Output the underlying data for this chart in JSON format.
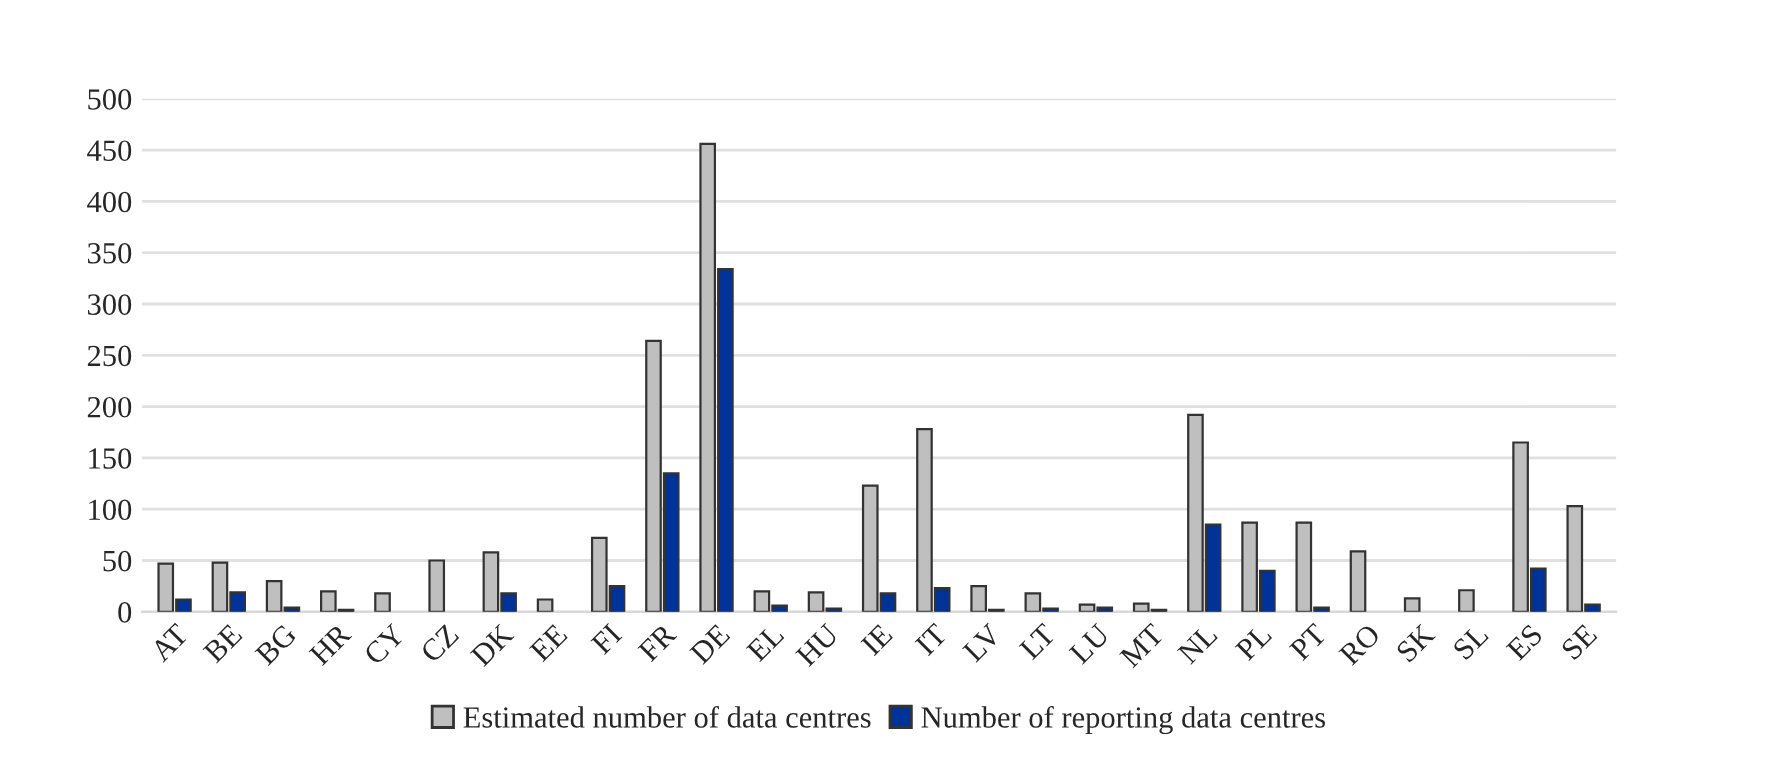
{
  "chart_data": {
    "type": "bar",
    "categories": [
      "AT",
      "BE",
      "BG",
      "HR",
      "CY",
      "CZ",
      "DK",
      "EE",
      "FI",
      "FR",
      "DE",
      "EL",
      "HU",
      "IE",
      "IT",
      "LV",
      "LT",
      "LU",
      "MT",
      "NL",
      "PL",
      "PT",
      "RO",
      "SK",
      "SL",
      "ES",
      "SE"
    ],
    "series": [
      {
        "name": "Estimated number of data centres",
        "color": "#bfbfbf",
        "values": [
          47,
          48,
          30,
          20,
          18,
          50,
          58,
          12,
          72,
          264,
          456,
          20,
          19,
          123,
          178,
          25,
          18,
          7,
          8,
          192,
          87,
          87,
          59,
          13,
          21,
          165,
          103
        ]
      },
      {
        "name": "Number of reporting data centres",
        "color": "#003399",
        "values": [
          12,
          19,
          4,
          2,
          null,
          null,
          18,
          null,
          25,
          135,
          334,
          6,
          3,
          18,
          23,
          2,
          3,
          4,
          2,
          85,
          40,
          4,
          null,
          null,
          null,
          42,
          7
        ]
      }
    ],
    "ylim": [
      0,
      500
    ],
    "yticks": [
      0,
      50,
      100,
      150,
      200,
      250,
      300,
      350,
      400,
      450,
      500
    ],
    "grid": "y",
    "legend": "bottom"
  }
}
